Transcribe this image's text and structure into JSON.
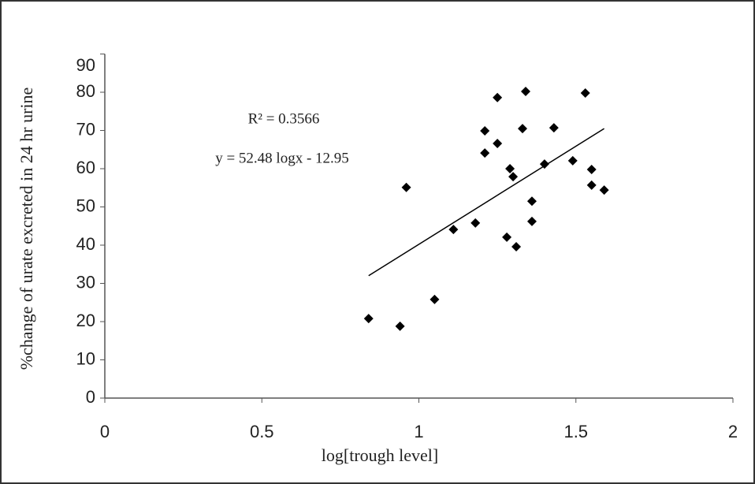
{
  "chart_data": {
    "type": "scatter",
    "x_label": "log[trough level]",
    "y_label": "%change of urate excreted in 24 hr urine",
    "annotations": [
      "R² = 0.3566",
      "y = 52.48 logx - 12.95"
    ],
    "x": [
      0.84,
      0.94,
      0.96,
      1.05,
      1.11,
      1.18,
      1.21,
      1.21,
      1.25,
      1.25,
      1.28,
      1.29,
      1.3,
      1.31,
      1.33,
      1.34,
      1.36,
      1.36,
      1.4,
      1.43,
      1.49,
      1.53,
      1.55,
      1.55,
      1.59
    ],
    "values": [
      20.8,
      18.8,
      55.1,
      25.8,
      44.1,
      45.8,
      64.1,
      69.9,
      78.6,
      66.6,
      42.1,
      60.0,
      57.9,
      39.6,
      70.5,
      80.2,
      46.2,
      51.5,
      61.2,
      70.7,
      62.1,
      79.8,
      59.8,
      55.7,
      54.4
    ],
    "color": "#000000",
    "trendline": {
      "x": [
        0.84,
        1.59
      ],
      "values": [
        32,
        70.5
      ]
    },
    "xlim": [
      0,
      2
    ],
    "xticks": [
      0,
      0.5,
      1,
      1.5,
      2
    ],
    "ylim": [
      0,
      90
    ],
    "yticks": [
      0,
      10,
      20,
      30,
      40,
      50,
      60,
      70,
      80,
      90
    ]
  }
}
